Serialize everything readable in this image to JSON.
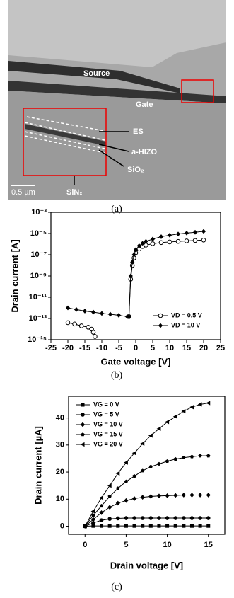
{
  "panel_a": {
    "caption": "(a)",
    "labels": {
      "source": "Source",
      "gate": "Gate",
      "es": "ES",
      "channel": "a-HIZO",
      "oxide": "SiO₂",
      "nitride": "SiNₓ",
      "scale": "0.5 µm"
    }
  },
  "chart_data": [
    {
      "type": "line",
      "caption": "(b)",
      "x_label": "Gate voltage [V]",
      "y_label": "Drain current [A]",
      "log_y": true,
      "xlim": [
        -25,
        25
      ],
      "xticks": [
        -25,
        -20,
        -15,
        -10,
        -5,
        0,
        5,
        10,
        15,
        20,
        25
      ],
      "ylim": [
        1e-15,
        0.001
      ],
      "yticks": [
        {
          "value": 0.001,
          "label": "10⁻³"
        },
        {
          "value": 1e-05,
          "label": "10⁻⁵"
        },
        {
          "value": 1e-07,
          "label": "10⁻⁷"
        },
        {
          "value": 1e-09,
          "label": "10⁻⁹"
        },
        {
          "value": 1e-11,
          "label": "10⁻¹¹"
        },
        {
          "value": 1e-13,
          "label": "10⁻¹³"
        },
        {
          "value": 1e-15,
          "label": "10⁻¹⁵"
        }
      ],
      "legend": "lower right",
      "series": [
        {
          "name": "VD = 0.5 V",
          "color": "#000000",
          "marker": "open-circle",
          "x": [
            -20,
            -18,
            -16,
            -14,
            -13,
            -12.5,
            -12,
            -7,
            -2,
            -1.5,
            -1,
            -0.5,
            0,
            1,
            2,
            3,
            5,
            7.5,
            10,
            12.5,
            15,
            17.5,
            20
          ],
          "values": [
            4e-14,
            3e-14,
            2e-14,
            1.5e-14,
            1e-14,
            5e-15,
            2e-15,
            null,
            1.5e-13,
            5e-10,
            1e-08,
            5e-08,
            1.5e-07,
            3.5e-07,
            6e-07,
            8e-07,
            1.1e-06,
            1.4e-06,
            1.6e-06,
            1.8e-06,
            2e-06,
            2.2e-06,
            2.4e-06
          ]
        },
        {
          "name": "VD = 10 V",
          "color": "#000000",
          "marker": "diamond",
          "x": [
            -20,
            -17.5,
            -15,
            -12.5,
            -10,
            -7.5,
            -5,
            -2.5,
            -2,
            -1.5,
            -1,
            -0.5,
            0,
            1,
            2,
            3,
            5,
            7.5,
            10,
            12.5,
            15,
            17.5,
            20
          ],
          "values": [
            1e-12,
            7e-13,
            5e-13,
            4e-13,
            3e-13,
            2.5e-13,
            2e-13,
            1.5e-13,
            1.5e-13,
            1e-09,
            2e-08,
            1e-07,
            3e-07,
            7e-07,
            1.2e-06,
            1.8e-06,
            3e-06,
            5e-06,
            7e-06,
            9e-06,
            1.1e-05,
            1.3e-05,
            1.6e-05
          ]
        }
      ]
    },
    {
      "type": "line",
      "caption": "(c)",
      "x_label": "Drain voltage [V]",
      "y_label": "Drain current [µA]",
      "xlim": [
        -2,
        17
      ],
      "xticks": [
        0,
        5,
        10,
        15
      ],
      "ylim": [
        -3,
        48
      ],
      "yticks": [
        0,
        10,
        20,
        30,
        40
      ],
      "legend": "upper left",
      "x": [
        0,
        1,
        2,
        3,
        4,
        5,
        6,
        7,
        8,
        9,
        10,
        11,
        12,
        13,
        14,
        15
      ],
      "series": [
        {
          "name": "VG = 0 V",
          "color": "#000000",
          "marker": "square",
          "values": [
            0,
            0.1,
            0.1,
            0.1,
            0.1,
            0.1,
            0.1,
            0.1,
            0.1,
            0.1,
            0.1,
            0.1,
            0.1,
            0.1,
            0.1,
            0.1
          ]
        },
        {
          "name": "VG = 5 V",
          "color": "#000000",
          "marker": "circle",
          "values": [
            0,
            1.2,
            2.2,
            2.7,
            2.9,
            3,
            3,
            3,
            3,
            3,
            3,
            3,
            3,
            3,
            3,
            3
          ]
        },
        {
          "name": "VG = 10 V",
          "color": "#000000",
          "marker": "diamond",
          "values": [
            0,
            2.5,
            5,
            7,
            8.5,
            9.5,
            10.2,
            10.7,
            11,
            11.2,
            11.3,
            11.4,
            11.5,
            11.5,
            11.5,
            11.5
          ]
        },
        {
          "name": "VG = 15 V",
          "color": "#000000",
          "marker": "pentagon",
          "values": [
            0,
            4,
            7.5,
            11,
            14,
            16.5,
            18.5,
            20.5,
            22,
            23,
            24,
            24.8,
            25.3,
            25.7,
            26,
            26
          ]
        },
        {
          "name": "VG = 20 V",
          "color": "#000000",
          "marker": "triangle-left",
          "values": [
            0,
            5.5,
            10.5,
            15,
            19.5,
            23.5,
            27,
            30.5,
            33.5,
            36,
            38.5,
            40.5,
            42.5,
            44,
            45,
            45.5
          ]
        }
      ]
    }
  ]
}
